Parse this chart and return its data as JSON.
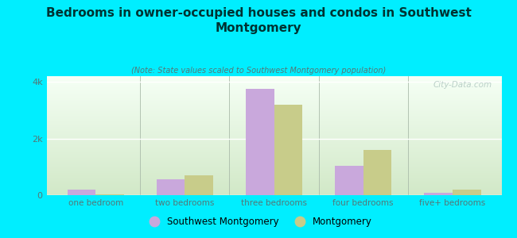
{
  "title": "Bedrooms in owner-occupied houses and condos in Southwest\nMontgomery",
  "subtitle": "(Note: State values scaled to Southwest Montgomery population)",
  "categories": [
    "one bedroom",
    "two bedrooms",
    "three bedrooms",
    "four bedrooms",
    "five+ bedrooms"
  ],
  "southwest_values": [
    200,
    550,
    3750,
    1050,
    75
  ],
  "montgomery_values": [
    30,
    700,
    3200,
    1600,
    200
  ],
  "sw_color": "#c9a8dc",
  "mont_color": "#c8cc8a",
  "background_color": "#00eeff",
  "ylim": [
    0,
    4200
  ],
  "yticks": [
    0,
    2000,
    4000
  ],
  "ytick_labels": [
    "0",
    "2k",
    "4k"
  ],
  "watermark": "City-Data.com",
  "legend_sw": "Southwest Montgomery",
  "legend_mont": "Montgomery",
  "title_color": "#003333",
  "subtitle_color": "#557777",
  "axis_color": "#557777",
  "bar_width": 0.32,
  "plot_bg_top": "#f5fff5",
  "plot_bg_bottom": "#d0e8c8"
}
